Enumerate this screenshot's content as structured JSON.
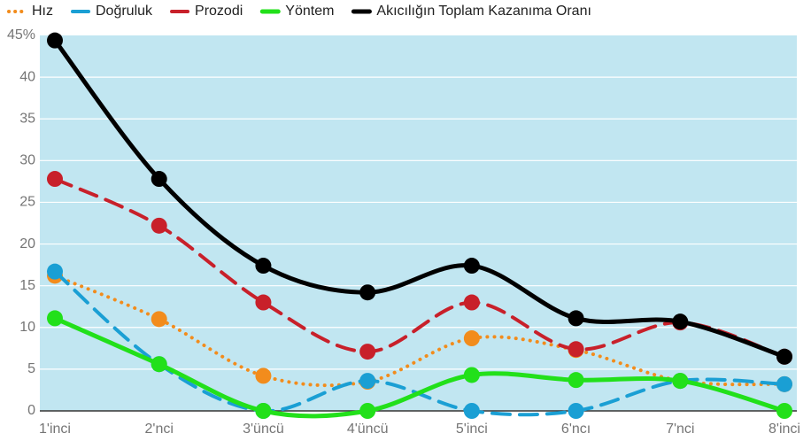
{
  "chart_data": {
    "type": "line",
    "categories": [
      "1'inci",
      "2'nci",
      "3'üncü",
      "4'üncü",
      "5'inci",
      "6'ncı",
      "7'nci",
      "8'inci"
    ],
    "series": [
      {
        "name": "Hız",
        "color": "#f28c1c",
        "dash": "dotted",
        "values": [
          16.2,
          11.0,
          4.2,
          3.5,
          8.7,
          7.3,
          3.6,
          3.2
        ]
      },
      {
        "name": "Doğruluk",
        "color": "#1a9fd4",
        "dash": "dashed",
        "values": [
          16.7,
          5.6,
          0,
          3.6,
          0,
          0,
          3.6,
          3.2
        ]
      },
      {
        "name": "Prozodi",
        "color": "#c8202a",
        "dash": "dashed",
        "values": [
          27.8,
          22.2,
          13.0,
          7.1,
          13.0,
          7.4,
          10.6,
          6.5
        ]
      },
      {
        "name": "Yöntem",
        "color": "#22e01a",
        "dash": "solid",
        "values": [
          11.1,
          5.6,
          0,
          0,
          4.3,
          3.7,
          3.6,
          0
        ]
      },
      {
        "name": "Akıcılığın Toplam Kazanıma Oranı",
        "color": "#000000",
        "dash": "solid",
        "values": [
          44.4,
          27.8,
          17.4,
          14.2,
          17.4,
          11.1,
          10.7,
          6.5
        ]
      }
    ],
    "ylim": [
      0,
      45
    ],
    "yticks": [
      0,
      5,
      10,
      15,
      20,
      25,
      30,
      35,
      40,
      {
        "value": 45,
        "label": "45%"
      }
    ],
    "grid": true,
    "legend": "top"
  }
}
